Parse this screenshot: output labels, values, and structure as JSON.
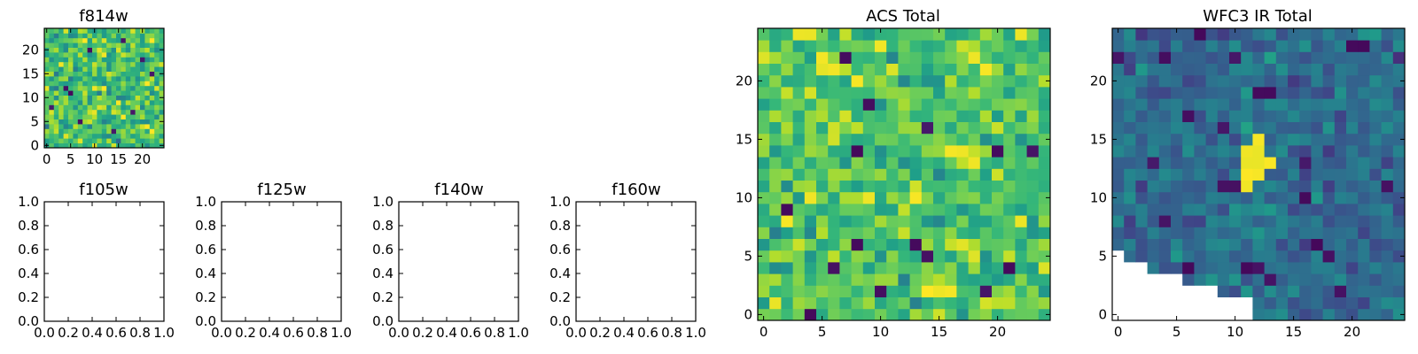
{
  "chart_data": [
    {
      "id": "f814w",
      "type": "heatmap",
      "title": "f814w",
      "grid_size": 25,
      "xlim": [
        0,
        24
      ],
      "ylim": [
        0,
        24
      ],
      "xticks": [
        0,
        5,
        10,
        15,
        20
      ],
      "yticks": [
        0,
        5,
        10,
        15,
        20
      ],
      "colormap": "viridis",
      "seed": 11,
      "mean": 0.7,
      "spread": 0.16,
      "dark_cells": [
        [
          5,
          11
        ],
        [
          4,
          12
        ],
        [
          18,
          7
        ],
        [
          9,
          20
        ],
        [
          14,
          3
        ],
        [
          22,
          15
        ],
        [
          1,
          8
        ],
        [
          16,
          22
        ],
        [
          7,
          5
        ],
        [
          20,
          18
        ]
      ],
      "bright_cells": [
        [
          10,
          12
        ],
        [
          15,
          9
        ],
        [
          3,
          17
        ],
        [
          21,
          4
        ],
        [
          8,
          22
        ]
      ],
      "masked_cells": []
    },
    {
      "id": "f105w",
      "type": "heatmap",
      "title": "f105w",
      "empty": true,
      "xlim": [
        0.0,
        1.0
      ],
      "ylim": [
        0.0,
        1.0
      ],
      "xtick_labels": [
        "0.0",
        "0.2",
        "0.4",
        "0.6",
        "0.8",
        "1.0"
      ],
      "ytick_labels": [
        "0.0",
        "0.2",
        "0.4",
        "0.6",
        "0.8",
        "1.0"
      ]
    },
    {
      "id": "f125w",
      "type": "heatmap",
      "title": "f125w",
      "empty": true,
      "xlim": [
        0.0,
        1.0
      ],
      "ylim": [
        0.0,
        1.0
      ],
      "xtick_labels": [
        "0.0",
        "0.2",
        "0.4",
        "0.6",
        "0.8",
        "1.0"
      ],
      "ytick_labels": [
        "0.0",
        "0.2",
        "0.4",
        "0.6",
        "0.8",
        "1.0"
      ]
    },
    {
      "id": "f140w",
      "type": "heatmap",
      "title": "f140w",
      "empty": true,
      "xlim": [
        0.0,
        1.0
      ],
      "ylim": [
        0.0,
        1.0
      ],
      "xtick_labels": [
        "0.0",
        "0.2",
        "0.4",
        "0.6",
        "0.8",
        "1.0"
      ],
      "ytick_labels": [
        "0.0",
        "0.2",
        "0.4",
        "0.6",
        "0.8",
        "1.0"
      ]
    },
    {
      "id": "f160w",
      "type": "heatmap",
      "title": "f160w",
      "empty": true,
      "xlim": [
        0.0,
        1.0
      ],
      "ylim": [
        0.0,
        1.0
      ],
      "xtick_labels": [
        "0.0",
        "0.2",
        "0.4",
        "0.6",
        "0.8",
        "1.0"
      ],
      "ytick_labels": [
        "0.0",
        "0.2",
        "0.4",
        "0.6",
        "0.8",
        "1.0"
      ]
    },
    {
      "id": "acs-total",
      "type": "heatmap",
      "title": "ACS Total",
      "grid_size": 25,
      "xlim": [
        0,
        24
      ],
      "ylim": [
        0,
        24
      ],
      "xticks": [
        0,
        5,
        10,
        15,
        20
      ],
      "yticks": [
        0,
        5,
        10,
        15,
        20
      ],
      "colormap": "viridis",
      "seed": 29,
      "mean": 0.72,
      "spread": 0.13,
      "dark_cells": [
        [
          7,
          22
        ],
        [
          9,
          18
        ],
        [
          8,
          14
        ],
        [
          23,
          14
        ],
        [
          20,
          14
        ],
        [
          8,
          6
        ],
        [
          13,
          6
        ],
        [
          14,
          5
        ],
        [
          14,
          16
        ],
        [
          21,
          4
        ],
        [
          19,
          2
        ],
        [
          10,
          2
        ],
        [
          6,
          4
        ],
        [
          2,
          9
        ],
        [
          4,
          0
        ]
      ],
      "bright_cells": [
        [
          3,
          24
        ],
        [
          4,
          24
        ],
        [
          5,
          22
        ],
        [
          5,
          21
        ],
        [
          6,
          21
        ],
        [
          18,
          22
        ],
        [
          19,
          21
        ],
        [
          16,
          14
        ],
        [
          17,
          14
        ],
        [
          18,
          13
        ],
        [
          2,
          8
        ],
        [
          16,
          2
        ],
        [
          15,
          2
        ],
        [
          14,
          2
        ],
        [
          22,
          24
        ],
        [
          9,
          10
        ],
        [
          13,
          10
        ]
      ],
      "masked_cells": []
    },
    {
      "id": "wfc3-ir-total",
      "type": "heatmap",
      "title": "WFC3 IR Total",
      "grid_size": 25,
      "xlim": [
        0,
        24
      ],
      "ylim": [
        0,
        24
      ],
      "xticks": [
        0,
        5,
        10,
        15,
        20
      ],
      "yticks": [
        0,
        5,
        10,
        15,
        20
      ],
      "colormap": "viridis",
      "seed": 47,
      "mean": 0.36,
      "spread": 0.1,
      "dark_cells": [
        [
          7,
          24
        ],
        [
          20,
          23
        ],
        [
          21,
          23
        ],
        [
          0,
          22
        ],
        [
          10,
          22
        ],
        [
          4,
          22
        ],
        [
          12,
          19
        ],
        [
          13,
          19
        ],
        [
          9,
          16
        ],
        [
          3,
          13
        ],
        [
          9,
          11
        ],
        [
          10,
          11
        ],
        [
          11,
          11
        ],
        [
          16,
          13
        ],
        [
          6,
          17
        ],
        [
          16,
          10
        ],
        [
          23,
          11
        ],
        [
          4,
          8
        ],
        [
          17,
          6
        ],
        [
          18,
          5
        ],
        [
          11,
          4
        ],
        [
          12,
          4
        ],
        [
          19,
          2
        ],
        [
          6,
          4
        ],
        [
          13,
          3
        ]
      ],
      "bright_cells": [
        [
          11,
          14
        ],
        [
          12,
          14
        ],
        [
          11,
          13
        ],
        [
          12,
          13
        ],
        [
          13,
          13
        ],
        [
          11,
          12
        ],
        [
          12,
          12
        ],
        [
          11,
          11
        ],
        [
          12,
          15
        ]
      ],
      "masked_cells": [
        [
          0,
          0
        ],
        [
          1,
          0
        ],
        [
          2,
          0
        ],
        [
          3,
          0
        ],
        [
          4,
          0
        ],
        [
          5,
          0
        ],
        [
          6,
          0
        ],
        [
          7,
          0
        ],
        [
          8,
          0
        ],
        [
          9,
          0
        ],
        [
          10,
          0
        ],
        [
          11,
          0
        ],
        [
          0,
          1
        ],
        [
          1,
          1
        ],
        [
          2,
          1
        ],
        [
          3,
          1
        ],
        [
          4,
          1
        ],
        [
          5,
          1
        ],
        [
          6,
          1
        ],
        [
          7,
          1
        ],
        [
          8,
          1
        ],
        [
          9,
          1
        ],
        [
          10,
          1
        ],
        [
          11,
          1
        ],
        [
          0,
          2
        ],
        [
          1,
          2
        ],
        [
          2,
          2
        ],
        [
          3,
          2
        ],
        [
          4,
          2
        ],
        [
          5,
          2
        ],
        [
          6,
          2
        ],
        [
          7,
          2
        ],
        [
          8,
          2
        ],
        [
          0,
          3
        ],
        [
          1,
          3
        ],
        [
          2,
          3
        ],
        [
          3,
          3
        ],
        [
          4,
          3
        ],
        [
          5,
          3
        ],
        [
          0,
          4
        ],
        [
          1,
          4
        ],
        [
          2,
          4
        ],
        [
          0,
          5
        ]
      ]
    }
  ]
}
